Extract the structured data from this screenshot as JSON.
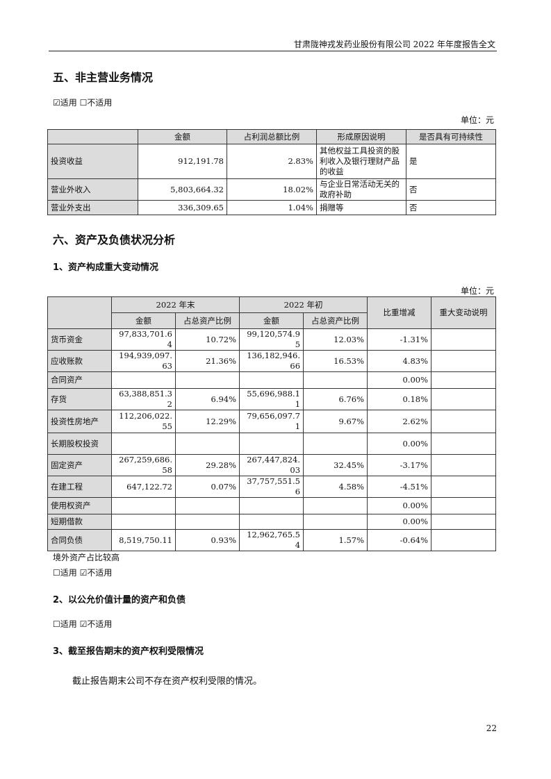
{
  "header": {
    "title": "甘肃陇神戎发药业股份有限公司 2022 年年度报告全文"
  },
  "section5": {
    "title": "五、非主营业务情况",
    "applicability": "☑适用 ☐不适用",
    "unit": "单位：元",
    "columns": [
      "",
      "金额",
      "占利润总额比例",
      "形成原因说明",
      "是否具有可持续性"
    ],
    "rows": [
      [
        "投资收益",
        "912,191.78",
        "2.83%",
        "其他权益工具投资的股利收入及银行理财产品的收益",
        "是"
      ],
      [
        "营业外收入",
        "5,803,664.32",
        "18.02%",
        "与企业日常活动无关的政府补助",
        "否"
      ],
      [
        "营业外支出",
        "336,309.65",
        "1.04%",
        "捐赠等",
        "否"
      ]
    ]
  },
  "section6": {
    "title": "六、资产及负债状况分析",
    "sub1": {
      "title": "1、资产构成重大变动情况",
      "unit": "单位：元",
      "group_headers": [
        "2022 年末",
        "2022 年初",
        "比重增减",
        "重大变动说明"
      ],
      "sub_headers": [
        "金额",
        "占总资产比例",
        "金额",
        "占总资产比例"
      ],
      "rows": [
        [
          "货币资金",
          "97,833,701.64",
          "10.72%",
          "99,120,574.95",
          "12.03%",
          "-1.31%",
          ""
        ],
        [
          "应收账款",
          "194,939,097.63",
          "21.36%",
          "136,182,946.66",
          "16.53%",
          "4.83%",
          ""
        ],
        [
          "合同资产",
          "",
          "",
          "",
          "",
          "0.00%",
          ""
        ],
        [
          "存货",
          "63,388,851.32",
          "6.94%",
          "55,696,988.11",
          "6.76%",
          "0.18%",
          ""
        ],
        [
          "投资性房地产",
          "112,206,022.55",
          "12.29%",
          "79,656,097.71",
          "9.67%",
          "2.62%",
          ""
        ],
        [
          "长期股权投资",
          "",
          "",
          "",
          "",
          "0.00%",
          ""
        ],
        [
          "固定资产",
          "267,259,686.58",
          "29.28%",
          "267,447,824.03",
          "32.45%",
          "-3.17%",
          ""
        ],
        [
          "在建工程",
          "647,122.72",
          "0.07%",
          "37,757,551.56",
          "4.58%",
          "-4.51%",
          ""
        ],
        [
          "使用权资产",
          "",
          "",
          "",
          "",
          "0.00%",
          ""
        ],
        [
          "短期借款",
          "",
          "",
          "",
          "",
          "0.00%",
          ""
        ],
        [
          "合同负债",
          "8,519,750.11",
          "0.93%",
          "12,962,765.54",
          "1.57%",
          "-0.64%",
          ""
        ]
      ],
      "overseas_note": "境外资产占比较高",
      "overseas_applicability": "☐适用 ☑不适用"
    },
    "sub2": {
      "title": "2、以公允价值计量的资产和负债",
      "applicability": "☐适用 ☑不适用"
    },
    "sub3": {
      "title": "3、截至报告期末的资产权利受限情况",
      "body": "截止报告期末公司不存在资产权利受限的情况。"
    }
  },
  "page_number": "22"
}
